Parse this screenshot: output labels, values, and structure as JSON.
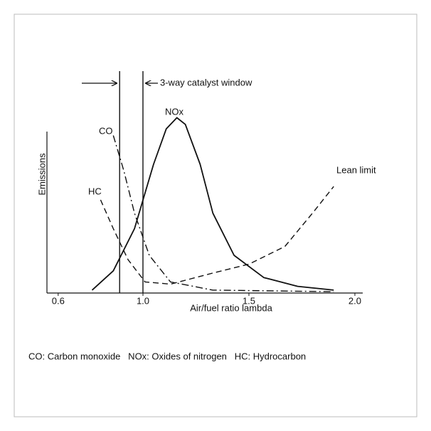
{
  "chart_data": {
    "type": "line",
    "xlabel": "Air/fuel ratio lambda",
    "ylabel": "Emissions",
    "xlim": [
      0.547,
      2.037
    ],
    "xticks": [
      {
        "value": 0.6,
        "label": "0.6"
      },
      {
        "value": 1.0,
        "label": "1.0"
      },
      {
        "value": 1.5,
        "label": "1.5"
      },
      {
        "value": 2.0,
        "label": "2.0"
      }
    ],
    "ylim": [
      0,
      100
    ],
    "catalyst_window": [
      0.89,
      1.0
    ],
    "series": [
      {
        "name": "NOx",
        "color": "#111111",
        "style": "solid",
        "x": [
          0.76,
          0.86,
          0.96,
          1.05,
          1.11,
          1.16,
          1.2,
          1.27,
          1.33,
          1.43,
          1.57,
          1.73,
          1.9
        ],
        "values": [
          1.3,
          10,
          29,
          58,
          74,
          79,
          76,
          58,
          36,
          17,
          7,
          3,
          1.3
        ]
      },
      {
        "name": "CO",
        "color": "#111111",
        "style": "dashdot",
        "x": [
          0.86,
          0.91,
          0.96,
          1.03,
          1.13,
          1.33,
          1.9
        ],
        "values": [
          71,
          55,
          36,
          17,
          5,
          1.3,
          0.6
        ]
      },
      {
        "name": "HC",
        "color": "#111111",
        "style": "dash",
        "x": [
          0.8,
          0.86,
          0.93,
          1.01,
          1.13,
          1.33,
          1.5,
          1.67,
          1.8,
          1.9
        ],
        "values": [
          42,
          29,
          15,
          5,
          4,
          9,
          13,
          21,
          36,
          48
        ]
      }
    ],
    "annotations": [
      "3-way catalyst window",
      "Lean limit"
    ],
    "footnote": "CO: Carbon monoxide   NOx: Oxides of nitrogen   HC: Hydrocarbon"
  }
}
